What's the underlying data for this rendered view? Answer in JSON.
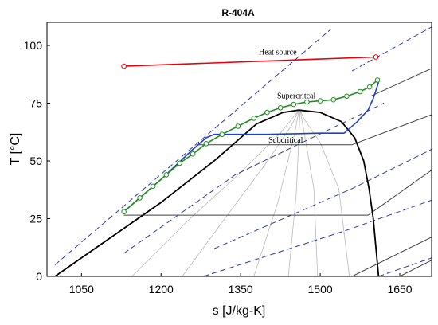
{
  "chart_data": {
    "type": "line",
    "title": "R-404A",
    "xlabel": "s [J/kg-K]",
    "ylabel": "T [°C]",
    "xlim": [
      985,
      1710
    ],
    "ylim": [
      0,
      110
    ],
    "xticks": [
      1050,
      1200,
      1350,
      1500,
      1650
    ],
    "yticks": [
      0,
      25,
      50,
      75,
      100
    ],
    "grid": false,
    "annotations": [
      {
        "text": "Heat source",
        "x": 1420,
        "y": 96
      },
      {
        "text": "Supercritcal",
        "x": 1455,
        "y": 77
      },
      {
        "text": "Subcritical",
        "x": 1435,
        "y": 58
      }
    ],
    "series": [
      {
        "role": "heat-source",
        "color": "#e8000b",
        "markers": true,
        "x": [
          1130,
          1605
        ],
        "y": [
          91,
          95
        ]
      },
      {
        "role": "supercritical-cycle",
        "color": "#1e8f1e",
        "markers": true,
        "x": [
          1130,
          1160,
          1185,
          1210,
          1235,
          1260,
          1285,
          1315,
          1345,
          1375,
          1400,
          1425,
          1450,
          1475,
          1500,
          1525,
          1550,
          1575,
          1593,
          1608
        ],
        "y": [
          28,
          34,
          39,
          44,
          49,
          53,
          57.5,
          61.5,
          65,
          68.5,
          71,
          73,
          74.5,
          75.5,
          76,
          76.5,
          78,
          80,
          82,
          85
        ]
      },
      {
        "role": "subcritical-cycle",
        "color": "#2140c0",
        "markers": false,
        "x": [
          1130,
          1200,
          1260,
          1285,
          1300,
          1400,
          1500,
          1545,
          1570,
          1590,
          1600,
          1610
        ],
        "y": [
          28,
          42,
          55,
          60,
          61.5,
          61.5,
          62,
          62,
          67,
          72,
          77,
          84
        ]
      },
      {
        "role": "saturation-dome",
        "color": "#000000",
        "markers": false,
        "x": [
          1000,
          1100,
          1200,
          1300,
          1380,
          1430,
          1460,
          1500,
          1540,
          1565,
          1582,
          1592,
          1600,
          1606,
          1610
        ],
        "y": [
          0,
          16,
          32,
          50,
          66,
          71,
          72,
          71,
          67,
          60,
          50,
          38,
          25,
          10,
          0
        ]
      },
      {
        "role": "isobars",
        "color": "#404040",
        "markers": false,
        "lines": [
          {
            "x": [
              1130,
              1590,
              1710
            ],
            "y": [
              26.5,
              26.5,
              46
            ]
          },
          {
            "x": [
              1270,
              1560,
              1710
            ],
            "y": [
              57,
              57,
              70
            ]
          },
          {
            "x": [
              1595,
              1710
            ],
            "y": [
              78,
              90
            ]
          },
          {
            "x": [
              1560,
              1710
            ],
            "y": [
              0,
              17
            ]
          },
          {
            "x": [
              1650,
              1710
            ],
            "y": [
              0,
              7
            ]
          }
        ]
      },
      {
        "role": "isochores",
        "color": "#2f3c9e",
        "markers": false,
        "dashed": true,
        "lines": [
          {
            "x": [
              1000,
              1520
            ],
            "y": [
              5,
              107
            ]
          },
          {
            "x": [
              1130,
              1340,
              1620
            ],
            "y": [
              10,
              44,
              75
            ]
          },
          {
            "x": [
              1300,
              1560,
              1710
            ],
            "y": [
              12,
              38,
              55
            ]
          },
          {
            "x": [
              1280,
              1550,
              1710
            ],
            "y": [
              0,
              20,
              33
            ]
          },
          {
            "x": [
              1610,
              1710
            ],
            "y": [
              0,
              8
            ]
          },
          {
            "x": [
              1560,
              1710
            ],
            "y": [
              89,
              108
            ]
          }
        ]
      },
      {
        "role": "quality-lines",
        "color": "#b8b8b8",
        "markers": false,
        "lines": [
          {
            "x": [
              1145,
              1250,
              1350,
              1425,
              1460
            ],
            "y": [
              0,
              24,
              45,
              62,
              72
            ]
          },
          {
            "x": [
              1240,
              1320,
              1395,
              1445,
              1460
            ],
            "y": [
              0,
              25,
              48,
              65,
              72
            ]
          },
          {
            "x": [
              1375,
              1420,
              1452,
              1460
            ],
            "y": [
              0,
              32,
              62,
              72
            ]
          },
          {
            "x": [
              1440,
              1455,
              1462
            ],
            "y": [
              0,
              36,
              72
            ]
          },
          {
            "x": [
              1495,
              1488,
              1470,
              1462
            ],
            "y": [
              0,
              38,
              62,
              72
            ]
          },
          {
            "x": [
              1555,
              1535,
              1500,
              1470,
              1462
            ],
            "y": [
              0,
              38,
              58,
              68,
              72
            ]
          }
        ]
      }
    ]
  }
}
